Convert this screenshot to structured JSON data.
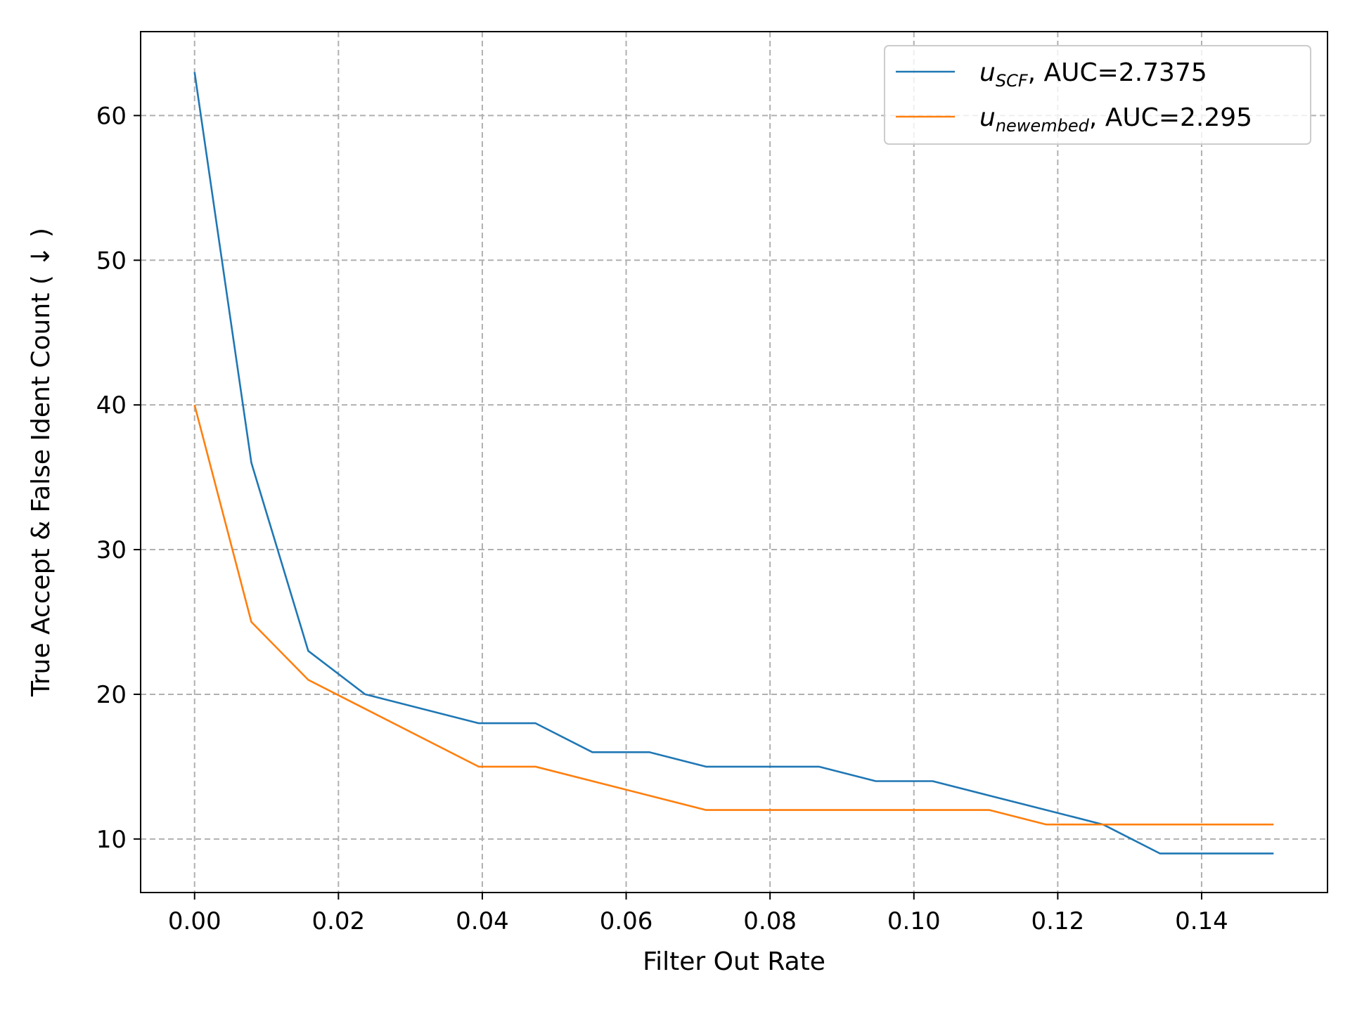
{
  "chart_data": {
    "type": "line",
    "title": "",
    "xlabel": "Filter Out Rate",
    "ylabel": "True Accept & False Ident Count ( ↓ )",
    "xlim": [
      -0.0075,
      0.1575
    ],
    "ylim": [
      6.3,
      65.8
    ],
    "xticks": [
      0.0,
      0.02,
      0.04,
      0.06,
      0.08,
      0.1,
      0.12,
      0.14
    ],
    "xtick_labels": [
      "0.00",
      "0.02",
      "0.04",
      "0.06",
      "0.08",
      "0.10",
      "0.12",
      "0.14"
    ],
    "yticks": [
      10,
      20,
      30,
      40,
      50,
      60
    ],
    "ytick_labels": [
      "10",
      "20",
      "30",
      "40",
      "50",
      "60"
    ],
    "grid": true,
    "legend_position": "top-right",
    "series": [
      {
        "name": "u_SCF, AUC=2.7375",
        "legend_base": "u",
        "legend_sub": "SCF",
        "legend_suffix": ", AUC=2.7375",
        "color": "#1f77b4",
        "x": [
          0.0,
          0.0079,
          0.0158,
          0.0237,
          0.0395,
          0.0474,
          0.0553,
          0.0632,
          0.0711,
          0.0789,
          0.0868,
          0.0947,
          0.1026,
          0.1105,
          0.1184,
          0.1263,
          0.1342,
          0.1421,
          0.15
        ],
        "y": [
          63,
          36,
          23,
          20,
          18,
          18,
          16,
          16,
          15,
          15,
          15,
          14,
          14,
          13,
          12,
          11,
          9,
          9,
          9
        ]
      },
      {
        "name": "u_newembed, AUC=2.295",
        "legend_base": "u",
        "legend_sub": "newembed",
        "legend_suffix": ", AUC=2.295",
        "color": "#ff7f0e",
        "x": [
          0.0,
          0.0079,
          0.0158,
          0.0395,
          0.0474,
          0.0711,
          0.1105,
          0.1184,
          0.15
        ],
        "y": [
          40,
          25,
          21,
          15,
          15,
          12,
          12,
          11,
          11
        ]
      }
    ]
  }
}
